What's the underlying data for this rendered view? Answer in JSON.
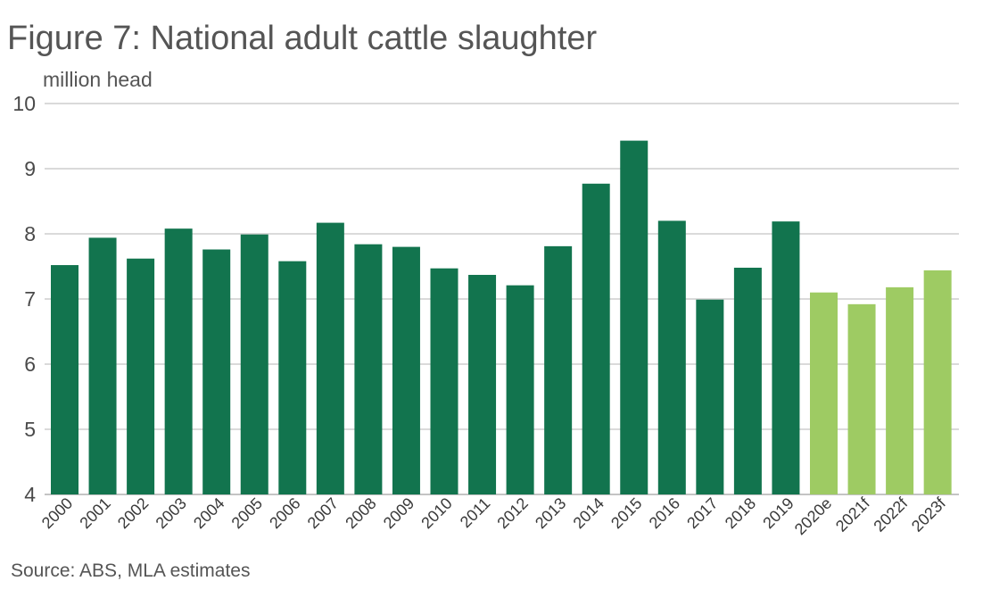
{
  "title": "Figure 7: National adult cattle slaughter",
  "source": "Source: ABS, MLA estimates",
  "colors": {
    "actual": "#12744E",
    "forecast": "#9ECB63",
    "grid": "#b5b5b5"
  },
  "chart_data": {
    "type": "bar",
    "title": "Figure 7: National adult cattle slaughter",
    "ylabel": "million head",
    "xlabel": "",
    "ylim": [
      4,
      10
    ],
    "yticks": [
      4,
      5,
      6,
      7,
      8,
      9,
      10
    ],
    "grid": true,
    "categories": [
      "2000",
      "2001",
      "2002",
      "2003",
      "2004",
      "2005",
      "2006",
      "2007",
      "2008",
      "2009",
      "2010",
      "2011",
      "2012",
      "2013",
      "2014",
      "2015",
      "2016",
      "2017",
      "2018",
      "2019",
      "2020e",
      "2021f",
      "2022f",
      "2023f"
    ],
    "values": [
      7.52,
      7.94,
      7.62,
      8.08,
      7.76,
      7.99,
      7.58,
      8.17,
      7.84,
      7.8,
      7.47,
      7.37,
      7.21,
      7.81,
      8.77,
      9.43,
      8.2,
      6.99,
      7.48,
      8.19,
      7.1,
      6.92,
      7.18,
      7.44
    ],
    "forecast": [
      false,
      false,
      false,
      false,
      false,
      false,
      false,
      false,
      false,
      false,
      false,
      false,
      false,
      false,
      false,
      false,
      false,
      false,
      false,
      false,
      true,
      true,
      true,
      true
    ]
  }
}
